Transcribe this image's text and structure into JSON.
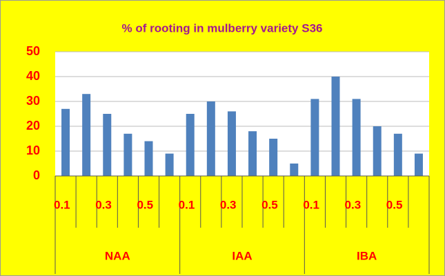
{
  "chart_data": {
    "type": "bar",
    "title": "% of rooting in mulberry variety S36",
    "categories": [
      "0.1",
      null,
      "0.3",
      null,
      "0.5",
      null,
      "0.1",
      null,
      "0.3",
      null,
      "0.5",
      null,
      "0.1",
      null,
      "0.3",
      null,
      "0.5",
      null
    ],
    "groups": [
      "NAA",
      "IAA",
      "IBA"
    ],
    "values": [
      27,
      33,
      25,
      17,
      14,
      9,
      25,
      30,
      26,
      18,
      15,
      5,
      31,
      40,
      31,
      20,
      17,
      9
    ],
    "color": "#4f81bd",
    "ylim": [
      0,
      50
    ],
    "yticks": [
      0,
      10,
      20,
      30,
      40,
      50
    ],
    "grid": true
  }
}
